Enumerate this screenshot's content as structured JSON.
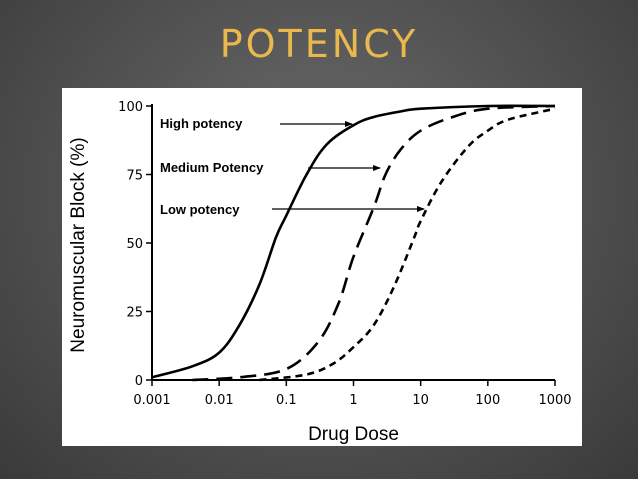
{
  "slide": {
    "title": "POTENCY"
  },
  "chart_data": {
    "type": "line",
    "xlabel": "Drug Dose",
    "ylabel": "Neuromuscular Block (%)",
    "xscale": "log",
    "xlim": [
      0.001,
      1000
    ],
    "ylim": [
      0,
      100
    ],
    "x_ticks": [
      {
        "value": 0.001,
        "label": "0.001"
      },
      {
        "value": 0.01,
        "label": "0.01"
      },
      {
        "value": 0.1,
        "label": "0.1"
      },
      {
        "value": 1,
        "label": "1"
      },
      {
        "value": 10,
        "label": "10"
      },
      {
        "value": 100,
        "label": "100"
      },
      {
        "value": 1000,
        "label": "1000"
      }
    ],
    "y_ticks": [
      {
        "value": 0,
        "label": "0"
      },
      {
        "value": 25,
        "label": "25"
      },
      {
        "value": 50,
        "label": "50"
      },
      {
        "value": 75,
        "label": "75"
      },
      {
        "value": 100,
        "label": "100"
      }
    ],
    "grid": false,
    "series": [
      {
        "name": "High potency",
        "style": "solid",
        "x": [
          0.001,
          0.004,
          0.01,
          0.02,
          0.04,
          0.07,
          0.1,
          0.2,
          0.4,
          1,
          2,
          5,
          10,
          100,
          1000
        ],
        "y": [
          1,
          5,
          10,
          20,
          35,
          52,
          60,
          75,
          86,
          93,
          96,
          98,
          99,
          100,
          100
        ]
      },
      {
        "name": "Medium Potency",
        "style": "dashed",
        "x": [
          0.004,
          0.02,
          0.1,
          0.3,
          0.6,
          1,
          2,
          3,
          5,
          10,
          30,
          100,
          1000
        ],
        "y": [
          0,
          1,
          4,
          14,
          28,
          45,
          63,
          75,
          84,
          91,
          96,
          99,
          100
        ]
      },
      {
        "name": "Low potency",
        "style": "dotted",
        "x": [
          0.04,
          0.2,
          0.5,
          1,
          2,
          4,
          8,
          10,
          20,
          50,
          100,
          200,
          1000
        ],
        "y": [
          0,
          2,
          6,
          12,
          20,
          34,
          52,
          58,
          72,
          85,
          91,
          95,
          99
        ]
      }
    ],
    "annotations": [
      {
        "text": "High potency",
        "series": 0
      },
      {
        "text": "Medium Potency",
        "series": 1
      },
      {
        "text": "Low potency",
        "series": 2
      }
    ]
  }
}
